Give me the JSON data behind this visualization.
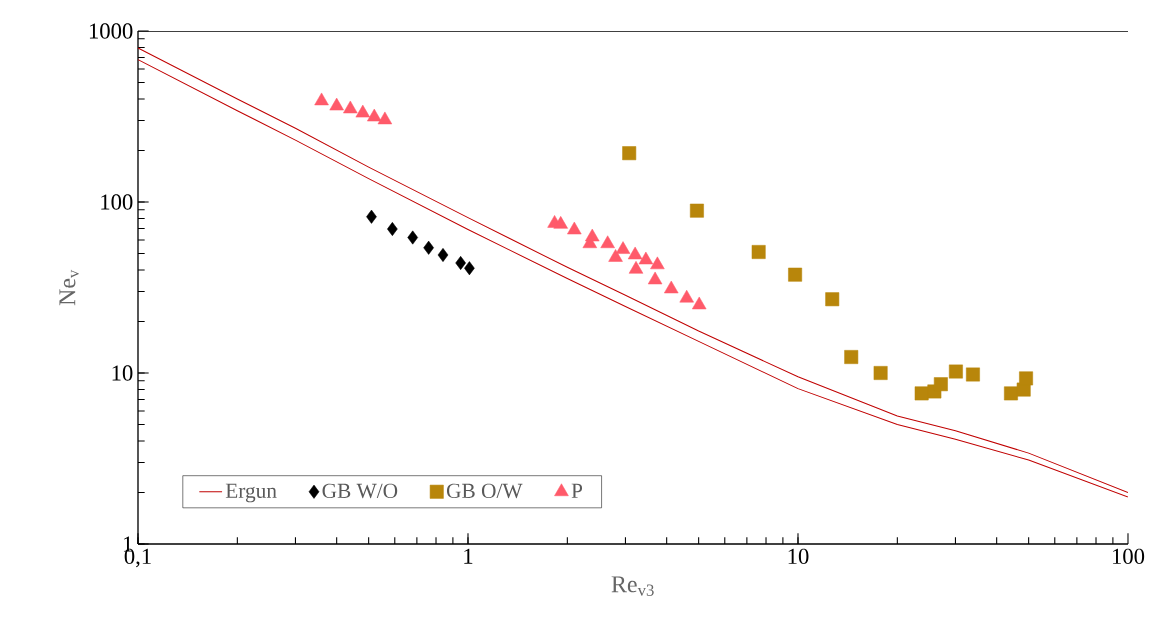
{
  "chart_data": {
    "type": "scatter",
    "xlabel": "Re$_{v3}$",
    "ylabel": "Ne$_{v}$",
    "log": "xy",
    "grid": false,
    "legend": "bottom left",
    "xlim": [
      0.1,
      100
    ],
    "ylim": [
      1,
      1000
    ],
    "xticks": [
      {
        "value": 0.1,
        "label": "0,1"
      },
      1,
      10,
      100
    ],
    "yticks": [
      1,
      10,
      100,
      1000
    ],
    "series": [
      {
        "name": "Ergun",
        "type": "line",
        "marker": "none",
        "color": "#c00000",
        "x": [
          0.1,
          0.2,
          0.3,
          0.5,
          1,
          2,
          3,
          5,
          10,
          20,
          30,
          50,
          100
        ],
        "values": [
          795,
          400,
          270,
          160,
          81,
          41.5,
          28.5,
          17.6,
          9.5,
          5.6,
          4.6,
          3.4,
          2.0
        ]
      },
      {
        "type": "line",
        "marker": "none",
        "color": "#c00000",
        "x": [
          0.1,
          0.2,
          0.3,
          0.5,
          1,
          2,
          3,
          5,
          10,
          20,
          30,
          50,
          100
        ],
        "values": [
          680,
          342,
          230,
          137,
          69,
          35.7,
          24.5,
          15.3,
          8.1,
          5.0,
          4.1,
          3.1,
          1.88
        ]
      },
      {
        "name": "GB W/O",
        "marker": "diamond",
        "color": "#000000",
        "x": [
          0.51,
          0.59,
          0.68,
          0.76,
          0.84,
          0.95,
          1.01
        ],
        "values": [
          82,
          69.5,
          62,
          54,
          49,
          44,
          41
        ]
      },
      {
        "name": "GB O/W",
        "marker": "square",
        "color": "#b8860b",
        "x": [
          3.08,
          4.94,
          7.6,
          9.8,
          12.7,
          14.5,
          17.8,
          23.7,
          25.9,
          27.1,
          30.1,
          33.9,
          44.2,
          48.3,
          49.1
        ],
        "values": [
          193,
          89,
          51,
          37.6,
          27,
          12.4,
          10.0,
          7.6,
          7.8,
          8.6,
          10.2,
          9.8,
          7.6,
          8.0,
          9.3
        ]
      },
      {
        "name": "P",
        "marker": "triangle",
        "color": "#ff5a6a",
        "x": [
          0.36,
          0.4,
          0.44,
          0.48,
          0.52,
          0.56,
          1.83,
          1.91,
          2.1,
          2.38,
          2.34,
          2.65,
          2.95,
          2.8,
          3.21,
          3.46,
          3.75,
          3.23,
          3.69,
          4.13,
          4.6,
          5.02
        ],
        "values": [
          390,
          364,
          350,
          331,
          314,
          302,
          75,
          74,
          68.6,
          62.4,
          57,
          57,
          52.7,
          47.4,
          49,
          45.8,
          42.9,
          40.4,
          35,
          31,
          27.4,
          25
        ]
      }
    ]
  }
}
